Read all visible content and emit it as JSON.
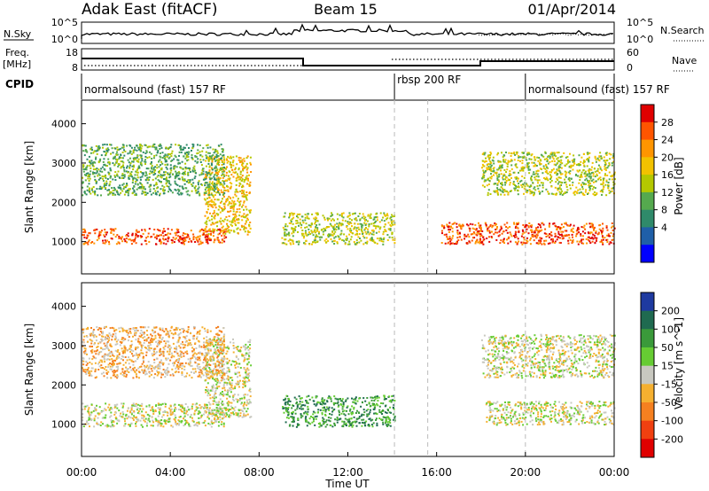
{
  "header": {
    "title": "Adak East (fitACF)",
    "beam": "Beam 15",
    "date": "01/Apr/2014"
  },
  "noise_panel": {
    "left_label": "N.Sky",
    "right_label": "N.Search",
    "left_ticks": [
      "10^5",
      "10^0"
    ],
    "right_ticks": [
      "10^5",
      "10^0"
    ]
  },
  "freq_panel": {
    "left_label_top": "Freq.",
    "left_label_unit": "[MHz]",
    "left_ticks": [
      "18",
      "8"
    ],
    "right_label": "Nave",
    "right_ticks": [
      "60",
      "0"
    ]
  },
  "cpid": {
    "label": "CPID",
    "segments": [
      {
        "name": "normalsound (fast) 157 RF",
        "start": 0,
        "end": 14.1
      },
      {
        "name": "rbsp 200 RF",
        "start": 14.1,
        "end": 20.0
      },
      {
        "name": "normalsound (fast) 157 RF",
        "start": 20.0,
        "end": 24
      }
    ]
  },
  "power_colorbar": {
    "label": "Power [dB]",
    "ticks": [
      "28",
      "24",
      "20",
      "16",
      "12",
      "8",
      "4"
    ],
    "colors": [
      "#e00000",
      "#ff5500",
      "#ff9500",
      "#f2c200",
      "#b4c800",
      "#55a94e",
      "#2f8a6a",
      "#1f5fa8",
      "#0000ff"
    ]
  },
  "velocity_colorbar": {
    "label": "Velocity [m s^-1]",
    "ticks": [
      "200",
      "100",
      "50",
      "15",
      "-15",
      "-50",
      "-100",
      "-200"
    ],
    "colors": [
      "#1e3aa0",
      "#1f6a50",
      "#3a9a3a",
      "#66cc33",
      "#c8c8c0",
      "#f5b030",
      "#f58020",
      "#f04010",
      "#e00000"
    ]
  },
  "axes": {
    "ylabel": "Slant Range [km]",
    "y_ticks": [
      "4000",
      "3000",
      "2000",
      "1000"
    ],
    "xlabel": "Time UT",
    "x_ticks": [
      "00:00",
      "04:00",
      "08:00",
      "12:00",
      "16:00",
      "20:00",
      "00:00"
    ]
  },
  "chart_data": [
    {
      "type": "heatmap",
      "title": "Power",
      "xlabel": "Time UT",
      "ylabel": "Slant Range [km]",
      "xlim": [
        0,
        24
      ],
      "ylim": [
        180,
        4600
      ],
      "colorbar_range": [
        0,
        30
      ],
      "x_ticks_hours": [
        0,
        4,
        8,
        12,
        16,
        20,
        24
      ],
      "y_ticks_km": [
        1000,
        2000,
        3000,
        4000
      ],
      "gap_hours": [
        14.1,
        15.6
      ],
      "features": [
        {
          "name": "near-range band",
          "x": [
            0,
            6.5
          ],
          "y_km": [
            950,
            1350
          ],
          "power_db": 28
        },
        {
          "name": "rising band",
          "x": [
            5.5,
            7.6
          ],
          "y_km": [
            1200,
            3200
          ],
          "power_db": 20
        },
        {
          "name": "far-range band",
          "x": [
            0,
            6.4
          ],
          "y_km": [
            2200,
            3500
          ],
          "power_db": 12
        },
        {
          "name": "midday patch",
          "x": [
            9.0,
            14.1
          ],
          "y_km": [
            950,
            1750
          ],
          "power_db": 14
        },
        {
          "name": "evening band",
          "x": [
            16.2,
            24
          ],
          "y_km": [
            950,
            1500
          ],
          "power_db": 26
        },
        {
          "name": "evening far band",
          "x": [
            18.0,
            24
          ],
          "y_km": [
            2200,
            3300
          ],
          "power_db": 16
        }
      ]
    },
    {
      "type": "heatmap",
      "title": "Velocity",
      "xlabel": "Time UT",
      "ylabel": "Slant Range [km]",
      "xlim": [
        0,
        24
      ],
      "ylim": [
        180,
        4600
      ],
      "colorbar_range": [
        -200,
        200
      ],
      "x_ticks_hours": [
        0,
        4,
        8,
        12,
        16,
        20,
        24
      ],
      "y_ticks_km": [
        1000,
        2000,
        3000,
        4000
      ],
      "gap_hours": [
        14.1,
        15.6
      ],
      "features": [
        {
          "name": "ground scatter band",
          "x": [
            0,
            6.5
          ],
          "y_km": [
            950,
            1550
          ],
          "velocity": 0
        },
        {
          "name": "rising band",
          "x": [
            5.5,
            7.6
          ],
          "y_km": [
            1200,
            3200
          ],
          "velocity": 0
        },
        {
          "name": "far-range band",
          "x": [
            0,
            6.4
          ],
          "y_km": [
            2200,
            3500
          ],
          "velocity": -30
        },
        {
          "name": "midday green patch",
          "x": [
            9.0,
            14.1
          ],
          "y_km": [
            950,
            1750
          ],
          "velocity": 80
        },
        {
          "name": "evening band",
          "x": [
            18.2,
            24
          ],
          "y_km": [
            1000,
            1600
          ],
          "velocity": 0
        },
        {
          "name": "evening far band",
          "x": [
            18.0,
            24
          ],
          "y_km": [
            2200,
            3300
          ],
          "velocity": 0
        }
      ]
    }
  ]
}
